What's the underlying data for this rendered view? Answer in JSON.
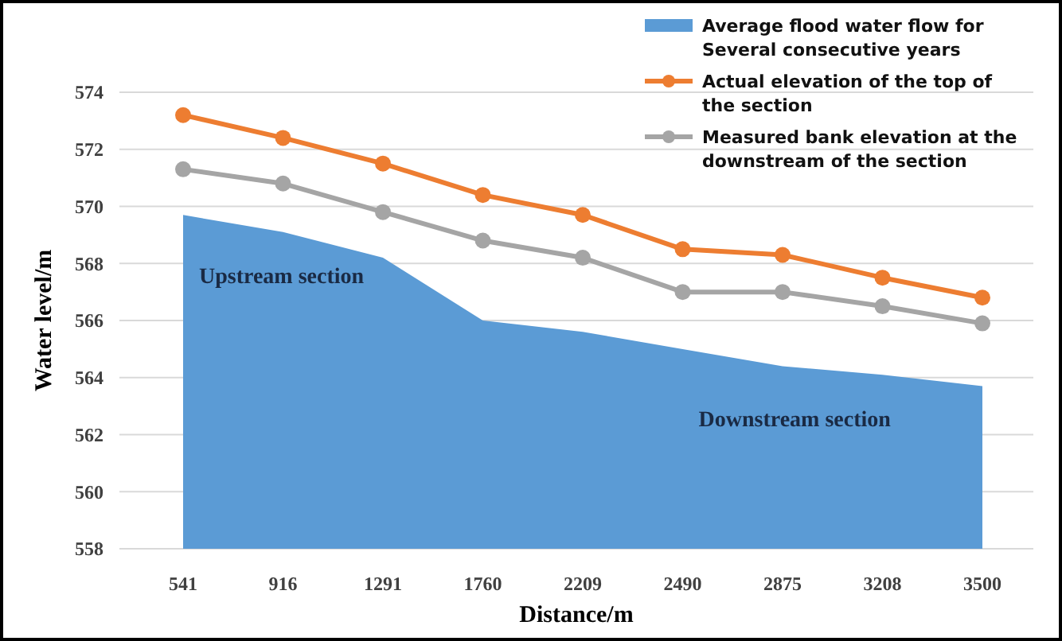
{
  "chart_data": {
    "type": "line",
    "xlabel": "Distance/m",
    "ylabel": "Water level/m",
    "categories": [
      "541",
      "916",
      "1291",
      "1760",
      "2209",
      "2490",
      "2875",
      "3208",
      "3500"
    ],
    "series": [
      {
        "name": "Average flood water flow for Several consecutive years",
        "type": "area",
        "color": "#5b9bd5",
        "values": [
          569.7,
          569.1,
          568.2,
          566.0,
          565.6,
          565.0,
          564.4,
          564.1,
          563.7
        ]
      },
      {
        "name": "Actual elevation of the top of the section",
        "marker": "circle",
        "color": "#ed7d31",
        "values": [
          573.2,
          572.4,
          571.5,
          570.4,
          569.7,
          568.5,
          568.3,
          567.5,
          566.8
        ]
      },
      {
        "name": "Measured bank elevation at the downstream of the section",
        "marker": "circle",
        "color": "#a5a5a5",
        "values": [
          571.3,
          570.8,
          569.8,
          568.8,
          568.2,
          567.0,
          567.0,
          566.5,
          565.9
        ]
      }
    ],
    "ylim": [
      558,
      574
    ],
    "yticks": [
      558,
      560,
      562,
      564,
      566,
      568,
      570,
      572,
      574
    ],
    "grid": "y",
    "legend": "top right",
    "line_style": "solid",
    "annotations": [
      "Upstream section",
      "Downstream section"
    ]
  }
}
